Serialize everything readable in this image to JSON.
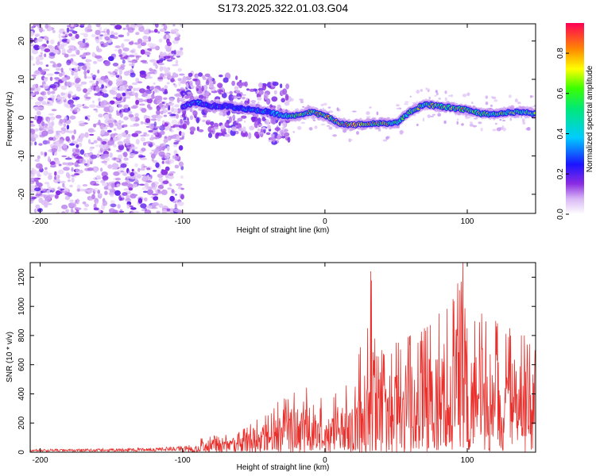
{
  "title": "S173.2025.322.01.03.G04",
  "chart_data": [
    {
      "type": "heatmap",
      "xlabel": "Height of straight line (km)",
      "ylabel": "Frequency (Hz)",
      "xlim": [
        -207,
        148
      ],
      "ylim": [
        -25,
        24.5
      ],
      "xticks": [
        -200,
        -100,
        0,
        100
      ],
      "yticks": [
        -20,
        -10,
        0,
        10,
        20
      ],
      "colorbar": {
        "label": "Normalized spectral amplitude",
        "range": [
          0,
          0.95
        ],
        "ticks": [
          0.0,
          0.2,
          0.4,
          0.6,
          0.8
        ],
        "tick_labels": [
          "0.0",
          "0.2",
          "0.4",
          "0.6",
          "0.8"
        ]
      },
      "ridge": {
        "description": "dominant frequency track vs height",
        "x": [
          -100,
          -90,
          -80,
          -70,
          -60,
          -50,
          -40,
          -30,
          -20,
          -10,
          0,
          10,
          20,
          30,
          40,
          50,
          60,
          70,
          80,
          90,
          100,
          110,
          120,
          130,
          140,
          148
        ],
        "freq": [
          3,
          4,
          3,
          3,
          2.5,
          2,
          1.5,
          0.5,
          0.5,
          1.5,
          0.5,
          -1.5,
          -2,
          -1.5,
          -1.5,
          -1.5,
          1.5,
          3.5,
          3,
          2.5,
          2,
          1,
          1,
          1.5,
          1.5,
          1
        ],
        "amplitude": [
          0.25,
          0.3,
          0.3,
          0.3,
          0.35,
          0.35,
          0.4,
          0.55,
          0.75,
          0.8,
          0.8,
          0.85,
          0.85,
          0.85,
          0.85,
          0.75,
          0.7,
          0.7,
          0.8,
          0.8,
          0.75,
          0.7,
          0.7,
          0.65,
          0.65,
          0.6
        ]
      }
    },
    {
      "type": "line",
      "xlabel": "Height of straight line (km)",
      "ylabel": "SNR (10 * v/v)",
      "xlim": [
        -207,
        148
      ],
      "ylim": [
        0,
        1300
      ],
      "xticks": [
        -200,
        -100,
        0,
        100
      ],
      "yticks": [
        0,
        200,
        400,
        600,
        800,
        1000,
        1200
      ],
      "series": [
        {
          "name": "SNR",
          "color": "#e8302c",
          "envelope_x": [
            -207,
            -150,
            -120,
            -100,
            -90,
            -80,
            -70,
            -60,
            -50,
            -40,
            -30,
            -20,
            -10,
            0,
            10,
            20,
            25,
            30,
            32,
            40,
            50,
            60,
            70,
            80,
            90,
            97,
            100,
            110,
            120,
            130,
            140,
            148
          ],
          "envelope_y": [
            20,
            25,
            30,
            40,
            60,
            180,
            120,
            140,
            220,
            260,
            380,
            420,
            500,
            350,
            450,
            560,
            720,
            850,
            1240,
            700,
            750,
            800,
            850,
            950,
            1050,
            1300,
            850,
            950,
            900,
            850,
            800,
            700
          ]
        }
      ]
    }
  ]
}
